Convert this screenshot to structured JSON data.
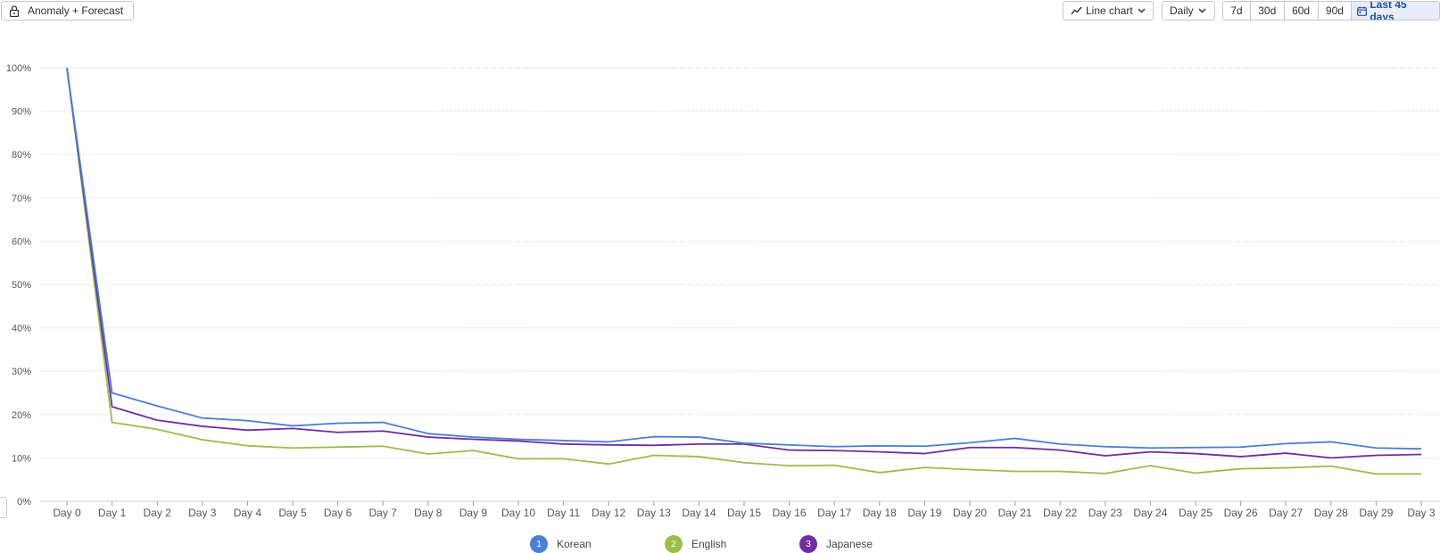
{
  "toolbar": {
    "anomaly_label": "Anomaly + Forecast",
    "chart_type_label": "Line chart",
    "interval_label": "Daily",
    "ranges": [
      "7d",
      "30d",
      "60d",
      "90d"
    ],
    "active_range_label": "Last 45 days"
  },
  "colors": {
    "Korean": "#4a7fd4",
    "English": "#9bbd4a",
    "Japanese": "#6d2fa0",
    "gridline": "#d0d3d8",
    "active_range": "#1f4fa3"
  },
  "icons": [
    "lock-icon",
    "line-chart-icon",
    "chevron-down-icon",
    "calendar-icon"
  ],
  "chart_data": {
    "type": "line",
    "title": "",
    "xlabel": "",
    "ylabel": "",
    "ylim": [
      0,
      100
    ],
    "y_ticks": [
      "0%",
      "10%",
      "20%",
      "30%",
      "40%",
      "50%",
      "60%",
      "70%",
      "80%",
      "90%",
      "100%"
    ],
    "grid": "horizontal dotted",
    "legend_position": "bottom",
    "categories": [
      "Day 0",
      "Day 1",
      "Day 2",
      "Day 3",
      "Day 4",
      "Day 5",
      "Day 6",
      "Day 7",
      "Day 8",
      "Day 9",
      "Day 10",
      "Day 11",
      "Day 12",
      "Day 13",
      "Day 14",
      "Day 15",
      "Day 16",
      "Day 17",
      "Day 18",
      "Day 19",
      "Day 20",
      "Day 21",
      "Day 22",
      "Day 23",
      "Day 24",
      "Day 25",
      "Day 26",
      "Day 27",
      "Day 28",
      "Day 29",
      "Day 3"
    ],
    "series": [
      {
        "name": "Korean",
        "values": [
          100,
          25.0,
          22.0,
          19.2,
          18.6,
          17.4,
          18.0,
          18.2,
          15.6,
          14.8,
          14.3,
          14.0,
          13.7,
          14.9,
          14.8,
          13.4,
          13.0,
          12.6,
          12.8,
          12.7,
          13.5,
          14.5,
          13.2,
          12.6,
          12.3,
          12.4,
          12.5,
          13.3,
          13.7,
          12.3,
          12.1
        ]
      },
      {
        "name": "English",
        "values": [
          100,
          18.2,
          16.6,
          14.2,
          12.8,
          12.3,
          12.5,
          12.7,
          10.9,
          11.7,
          9.8,
          9.8,
          8.6,
          10.6,
          10.3,
          8.9,
          8.2,
          8.3,
          6.6,
          7.8,
          7.3,
          6.9,
          6.9,
          6.4,
          8.2,
          6.5,
          7.5,
          7.7,
          8.1,
          6.3,
          6.3
        ]
      },
      {
        "name": "Japanese",
        "values": [
          100,
          21.8,
          18.7,
          17.3,
          16.4,
          16.8,
          15.9,
          16.2,
          14.8,
          14.3,
          13.9,
          13.2,
          13.0,
          12.9,
          13.2,
          13.2,
          11.8,
          11.7,
          11.4,
          11.0,
          12.4,
          12.4,
          11.8,
          10.5,
          11.4,
          11.0,
          10.3,
          11.1,
          10.0,
          10.6,
          10.8
        ]
      }
    ]
  },
  "legend": [
    {
      "num": "1",
      "label": "Korean"
    },
    {
      "num": "2",
      "label": "English"
    },
    {
      "num": "3",
      "label": "Japanese"
    }
  ]
}
